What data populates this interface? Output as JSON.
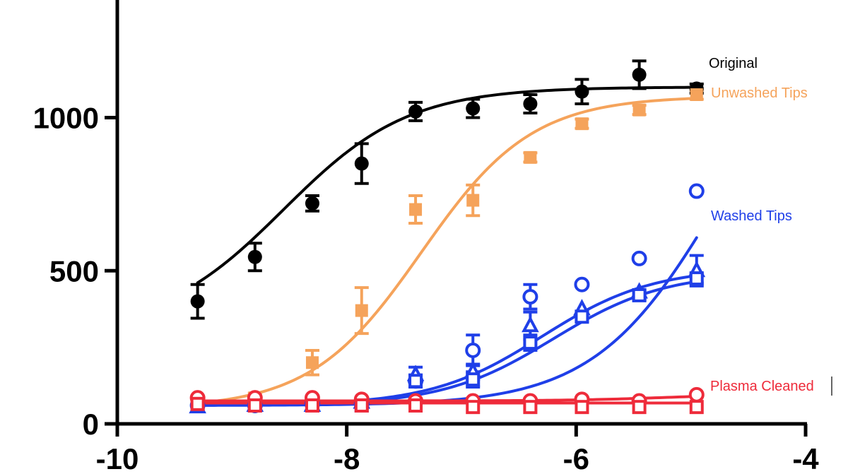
{
  "chart_data": {
    "type": "scatter",
    "title": "",
    "xlabel": "",
    "ylabel": "",
    "xlim": [
      -10,
      -4
    ],
    "ylim": [
      0,
      1300
    ],
    "x_ticks": [
      -10,
      -8,
      -6,
      -4
    ],
    "y_ticks": [
      0,
      500,
      1000
    ],
    "x_tick_labels": [
      "-10",
      "-8",
      "-6",
      "-4"
    ],
    "y_tick_labels": [
      "0",
      "500",
      "1000"
    ],
    "grid": false,
    "legend_placement": "right, labels next to curve ends",
    "legend": {
      "original": "Original",
      "unwashed": "Unwashed Tips",
      "washed": "Washed Tips",
      "plasma": "Plasma Cleaned"
    },
    "series": [
      {
        "key": "original",
        "color": "#000000",
        "marker": "filled-circle",
        "x": [
          -9.3,
          -8.8,
          -8.3,
          -7.87,
          -7.4,
          -6.9,
          -6.4,
          -5.95,
          -5.45,
          -4.95
        ],
        "y": [
          400,
          545,
          720,
          850,
          1020,
          1030,
          1045,
          1085,
          1140,
          1095
        ],
        "err": [
          55,
          45,
          25,
          65,
          30,
          30,
          30,
          40,
          45,
          15
        ],
        "fit": {
          "bottom": 300,
          "top": 1100,
          "logec50": -8.55,
          "hill": 0.8
        }
      },
      {
        "key": "unwashed",
        "color": "#f5a35b",
        "marker": "filled-square",
        "x": [
          -8.8,
          -8.3,
          -7.87,
          -7.4,
          -6.9,
          -6.4,
          -5.95,
          -5.45,
          -4.95
        ],
        "y": [
          85,
          200,
          370,
          700,
          730,
          870,
          980,
          1025,
          1075
        ],
        "err": [
          15,
          40,
          75,
          45,
          50,
          15,
          15,
          15,
          15
        ],
        "fit": {
          "bottom": 50,
          "top": 1070,
          "logec50": -7.35,
          "hill": 0.9
        }
      },
      {
        "key": "washed_circle",
        "color": "#1f3fe8",
        "marker": "open-circle",
        "x": [
          -9.3,
          -8.8,
          -8.3,
          -7.87,
          -7.4,
          -6.9,
          -6.4,
          -5.95,
          -5.45,
          -4.95
        ],
        "y": [
          60,
          60,
          65,
          65,
          140,
          240,
          415,
          455,
          540,
          760
        ],
        "err": [
          0,
          0,
          0,
          0,
          0,
          50,
          40,
          0,
          0,
          0
        ],
        "fit": {
          "bottom": 60,
          "top": 1400,
          "logec50": -4.75,
          "hill": 0.8
        }
      },
      {
        "key": "washed_triangle",
        "color": "#1f3fe8",
        "marker": "open-triangle",
        "x": [
          -9.3,
          -8.8,
          -8.3,
          -7.87,
          -7.4,
          -6.9,
          -6.4,
          -5.95,
          -5.45,
          -4.95
        ],
        "y": [
          55,
          60,
          60,
          70,
          160,
          170,
          320,
          375,
          430,
          500
        ],
        "err": [
          0,
          0,
          0,
          0,
          25,
          25,
          45,
          0,
          0,
          50
        ],
        "fit": {
          "bottom": 60,
          "top": 510,
          "logec50": -6.3,
          "hill": 0.9
        }
      },
      {
        "key": "washed_square",
        "color": "#1f3fe8",
        "marker": "open-square",
        "x": [
          -9.3,
          -8.8,
          -8.3,
          -7.87,
          -7.4,
          -6.9,
          -6.4,
          -5.95,
          -5.45,
          -4.95
        ],
        "y": [
          60,
          60,
          60,
          60,
          140,
          145,
          265,
          350,
          420,
          475
        ],
        "err": [
          0,
          0,
          0,
          0,
          20,
          25,
          25,
          15,
          15,
          15
        ],
        "fit": {
          "bottom": 60,
          "top": 495,
          "logec50": -6.2,
          "hill": 0.9
        }
      },
      {
        "key": "plasma_circle",
        "color": "#ee2b3a",
        "marker": "open-circle",
        "x": [
          -9.3,
          -8.8,
          -8.3,
          -7.87,
          -7.4,
          -6.9,
          -6.4,
          -5.95,
          -5.45,
          -4.95
        ],
        "y": [
          85,
          85,
          85,
          80,
          75,
          75,
          75,
          80,
          75,
          95
        ],
        "err": [
          0,
          0,
          0,
          0,
          0,
          0,
          0,
          0,
          0,
          0
        ],
        "fit": {
          "bottom": 75,
          "top": 98,
          "logec50": -5.2,
          "hill": 1.0
        }
      },
      {
        "key": "plasma_square",
        "color": "#ee2b3a",
        "marker": "open-square",
        "x": [
          -9.3,
          -8.8,
          -8.3,
          -7.87,
          -7.4,
          -6.9,
          -6.4,
          -5.95,
          -5.45,
          -4.95
        ],
        "y": [
          65,
          60,
          60,
          60,
          60,
          55,
          55,
          55,
          55,
          55
        ],
        "err": [
          0,
          0,
          0,
          0,
          0,
          0,
          0,
          0,
          0,
          0
        ],
        "fit": {
          "bottom": 68,
          "top": 68,
          "logec50": -7,
          "hill": 1.0
        }
      }
    ]
  }
}
